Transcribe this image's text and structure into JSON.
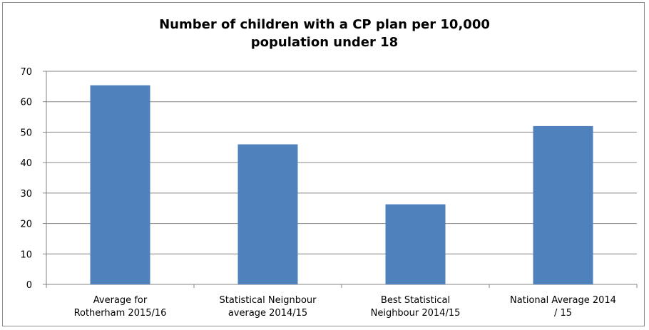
{
  "chart_data": {
    "type": "bar",
    "title": "Number  of children  with  a CP plan  per 10,000\npopulation  under 18",
    "categories": [
      [
        "Average for",
        "Rotherham 2015/16"
      ],
      [
        "Statistical Neignbour",
        "average 2014/15"
      ],
      [
        "Best Statistical",
        "Neighbour 2014/15"
      ],
      [
        "National Average 2014",
        "/ 15"
      ]
    ],
    "values": [
      65.4,
      46.0,
      26.3,
      52.0
    ],
    "xlabel": "",
    "ylabel": "",
    "ylim": [
      0,
      70
    ],
    "yticks": [
      "0",
      "10",
      "20",
      "30",
      "40",
      "50",
      "60",
      "70"
    ],
    "grid": true,
    "legend": "none",
    "colors": {
      "bar": "#4f81bd",
      "grid": "#868686",
      "axis": "#868686"
    }
  }
}
